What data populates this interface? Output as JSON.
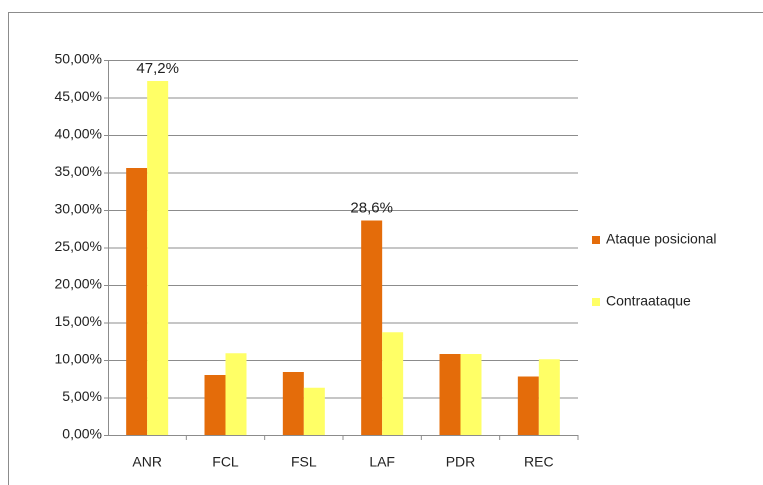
{
  "chart_data": {
    "type": "bar",
    "categories": [
      "ANR",
      "FCL",
      "FSL",
      "LAF",
      "PDR",
      "REC"
    ],
    "series": [
      {
        "name": "Ataque posicional",
        "color": "#e46c0a",
        "values": [
          35.6,
          8.0,
          8.4,
          28.6,
          10.8,
          7.8
        ],
        "value_labels": [
          null,
          null,
          null,
          "28,6%",
          null,
          null
        ]
      },
      {
        "name": "Contraataque",
        "color": "#ffff66",
        "values": [
          47.2,
          10.9,
          6.3,
          13.7,
          10.8,
          10.1
        ],
        "value_labels": [
          "47,2%",
          null,
          null,
          null,
          null,
          null
        ]
      }
    ],
    "ylim": [
      0,
      50
    ],
    "yticks": [
      {
        "value": 0,
        "label": "0,00%"
      },
      {
        "value": 5,
        "label": "5,00%"
      },
      {
        "value": 10,
        "label": "10,00%"
      },
      {
        "value": 15,
        "label": "15,00%"
      },
      {
        "value": 20,
        "label": "20,00%"
      },
      {
        "value": 25,
        "label": "25,00%"
      },
      {
        "value": 30,
        "label": "30,00%"
      },
      {
        "value": 35,
        "label": "35,00%"
      },
      {
        "value": 40,
        "label": "40,00%"
      },
      {
        "value": 45,
        "label": "45,00%"
      },
      {
        "value": 50,
        "label": "50,00%"
      }
    ],
    "grid": true,
    "legend": "right"
  }
}
